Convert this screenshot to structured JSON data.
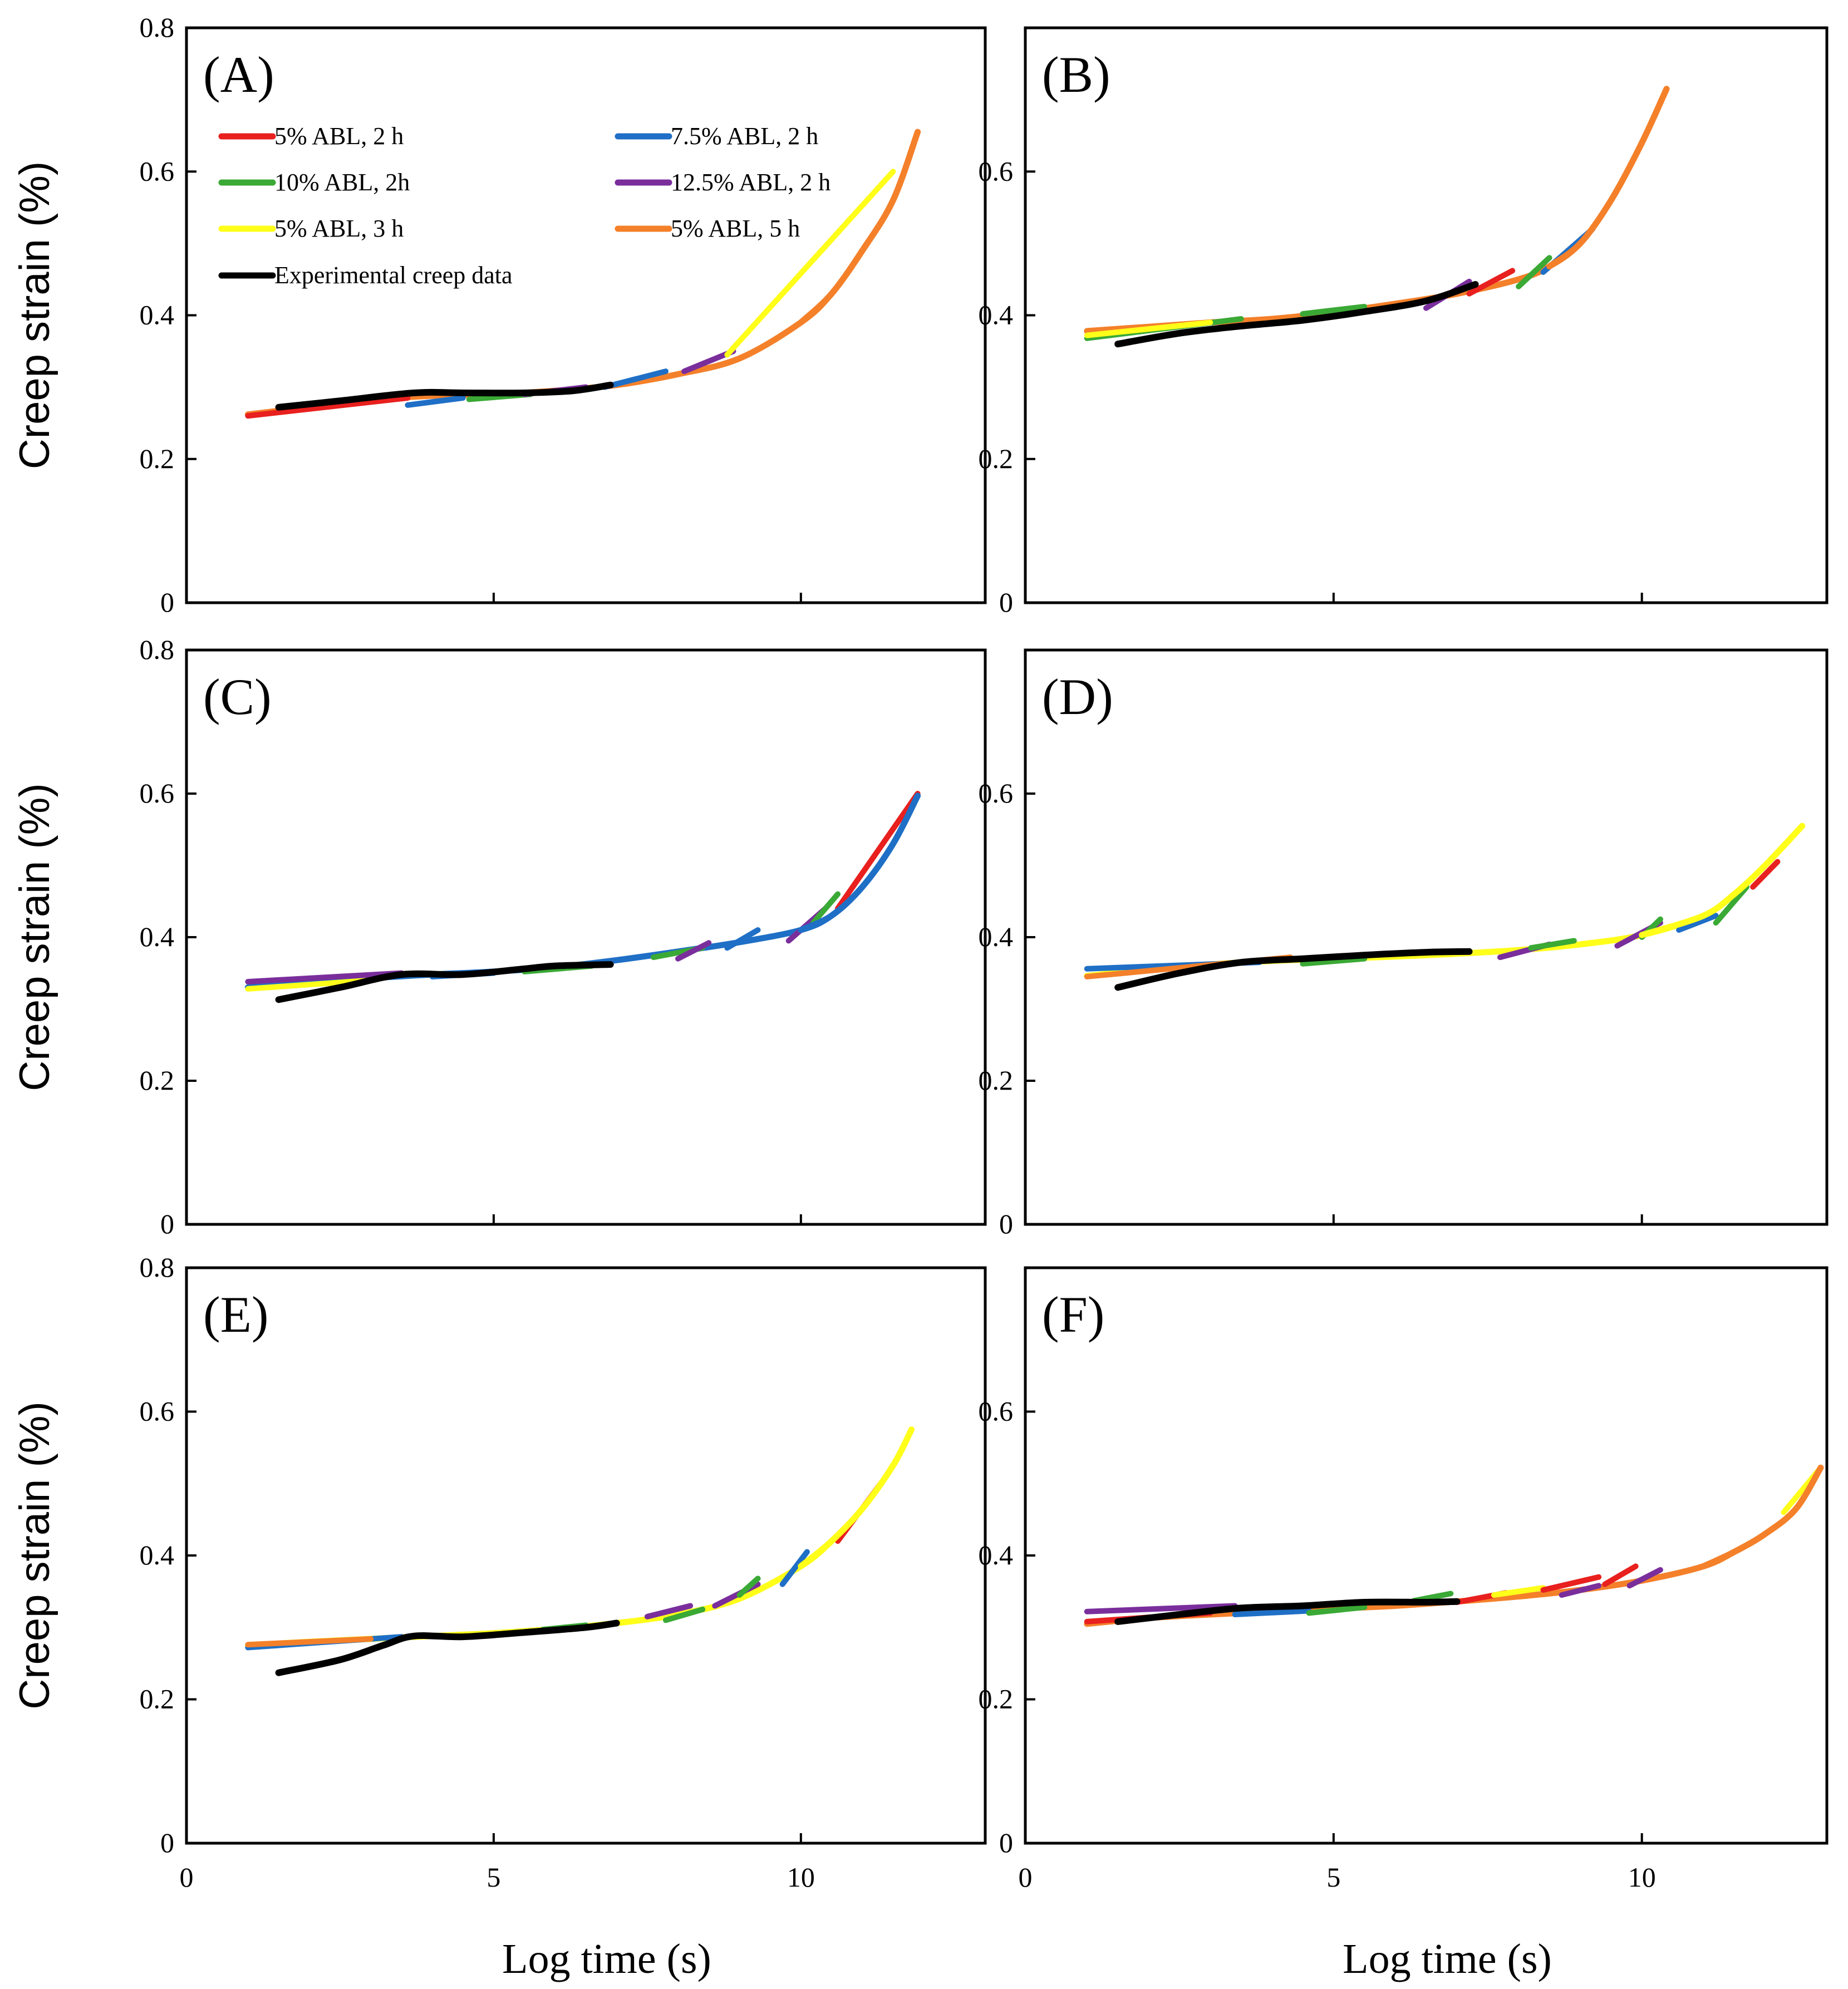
{
  "chart_data": {
    "type": "line",
    "layout": "3x2 grid of panels",
    "xlabel": "Log time (s)",
    "ylabel": "Creep strain (%)",
    "xlim": [
      0,
      13
    ],
    "ylim": [
      0,
      0.8
    ],
    "x_ticks": [
      "0",
      "5",
      "10"
    ],
    "y_ticks": [
      "0",
      "0.2",
      "0.4",
      "0.6",
      "0.8"
    ],
    "legend": {
      "placement": "top, inside panel A, two columns",
      "entries": [
        {
          "name": "5% ABL, 2 h",
          "color": "#e8201e"
        },
        {
          "name": "7.5% ABL, 2 h",
          "color": "#1f6fc6"
        },
        {
          "name": "10% ABL, 2h",
          "color": "#3aa935"
        },
        {
          "name": "12.5% ABL, 2 h",
          "color": "#7a2e9c"
        },
        {
          "name": "5% ABL, 3 h",
          "color": "#ffff1a"
        },
        {
          "name": "5% ABL, 5 h",
          "color": "#f4802a"
        },
        {
          "name": "Experimental creep data",
          "color": "#000000"
        }
      ]
    },
    "panels": [
      {
        "label": "(A)",
        "master_curve": {
          "x": [
            1,
            2,
            3,
            4,
            5,
            6,
            7,
            8,
            9,
            10,
            10.5,
            11,
            11.5,
            11.9
          ],
          "y": [
            0.262,
            0.272,
            0.282,
            0.288,
            0.29,
            0.295,
            0.303,
            0.318,
            0.34,
            0.39,
            0.43,
            0.49,
            0.56,
            0.655
          ],
          "final_series": "5% ABL, 5 h"
        },
        "segments": [
          {
            "series": "5% ABL, 2 h",
            "x": [
              1.0,
              3.6
            ],
            "y": [
              0.26,
              0.285
            ]
          },
          {
            "series": "7.5% ABL, 2 h",
            "x": [
              3.6,
              4.5
            ],
            "y": [
              0.275,
              0.285
            ]
          },
          {
            "series": "10% ABL, 2h",
            "x": [
              4.6,
              5.6
            ],
            "y": [
              0.283,
              0.29
            ]
          },
          {
            "series": "12.5% ABL, 2 h",
            "x": [
              5.5,
              6.5
            ],
            "y": [
              0.29,
              0.3
            ]
          },
          {
            "series": "7.5% ABL, 2 h",
            "x": [
              6.8,
              7.8
            ],
            "y": [
              0.3,
              0.322
            ]
          },
          {
            "series": "12.5% ABL, 2 h",
            "x": [
              8.1,
              8.9
            ],
            "y": [
              0.322,
              0.35
            ]
          },
          {
            "series": "5% ABL, 3 h",
            "x": [
              8.8,
              11.5
            ],
            "y": [
              0.345,
              0.6
            ]
          }
        ],
        "experimental": {
          "x": [
            1.5,
            2.5,
            3.7,
            4.5,
            5.5,
            6.3,
            6.9
          ],
          "y": [
            0.272,
            0.281,
            0.292,
            0.292,
            0.292,
            0.295,
            0.303
          ]
        }
      },
      {
        "label": "(B)",
        "master_curve": {
          "x": [
            1,
            2,
            3,
            4,
            5,
            6,
            7,
            8,
            8.5,
            9,
            9.5,
            10,
            10.4
          ],
          "y": [
            0.378,
            0.384,
            0.39,
            0.395,
            0.404,
            0.416,
            0.43,
            0.45,
            0.468,
            0.5,
            0.56,
            0.64,
            0.715
          ],
          "final_series": "5% ABL, 5 h"
        },
        "segments": [
          {
            "series": "10% ABL, 2h",
            "x": [
              1.0,
              3.5
            ],
            "y": [
              0.368,
              0.395
            ]
          },
          {
            "series": "5% ABL, 3 h",
            "x": [
              1.0,
              3.0
            ],
            "y": [
              0.372,
              0.39
            ]
          },
          {
            "series": "10% ABL, 2h",
            "x": [
              4.5,
              5.5
            ],
            "y": [
              0.402,
              0.412
            ]
          },
          {
            "series": "12.5% ABL, 2 h",
            "x": [
              6.5,
              7.2
            ],
            "y": [
              0.41,
              0.447
            ]
          },
          {
            "series": "5% ABL, 2 h",
            "x": [
              7.2,
              7.9
            ],
            "y": [
              0.43,
              0.462
            ]
          },
          {
            "series": "10% ABL, 2h",
            "x": [
              8.0,
              8.5
            ],
            "y": [
              0.44,
              0.48
            ]
          },
          {
            "series": "7.5% ABL, 2 h",
            "x": [
              8.4,
              9.2
            ],
            "y": [
              0.46,
              0.52
            ]
          }
        ],
        "experimental": {
          "x": [
            1.5,
            2.5,
            3.5,
            4.5,
            5.5,
            6.5,
            7.3
          ],
          "y": [
            0.36,
            0.375,
            0.385,
            0.393,
            0.405,
            0.42,
            0.443
          ]
        }
      },
      {
        "label": "(C)",
        "master_curve": {
          "x": [
            1,
            2,
            3,
            4,
            5,
            6,
            7,
            8,
            9,
            10,
            10.5,
            11,
            11.5,
            11.9
          ],
          "y": [
            0.33,
            0.338,
            0.343,
            0.348,
            0.352,
            0.358,
            0.368,
            0.38,
            0.393,
            0.41,
            0.43,
            0.47,
            0.53,
            0.597
          ],
          "final_series": "7.5% ABL, 2 h"
        },
        "segments": [
          {
            "series": "12.5% ABL, 2 h",
            "x": [
              1.0,
              3.5
            ],
            "y": [
              0.338,
              0.35
            ]
          },
          {
            "series": "5% ABL, 3 h",
            "x": [
              1.0,
              3.0
            ],
            "y": [
              0.328,
              0.34
            ]
          },
          {
            "series": "7.5% ABL, 2 h",
            "x": [
              4.0,
              5.0
            ],
            "y": [
              0.345,
              0.35
            ]
          },
          {
            "series": "10% ABL, 2h",
            "x": [
              5.5,
              6.6
            ],
            "y": [
              0.352,
              0.36
            ]
          },
          {
            "series": "10% ABL, 2h",
            "x": [
              7.6,
              8.4
            ],
            "y": [
              0.372,
              0.385
            ]
          },
          {
            "series": "12.5% ABL, 2 h",
            "x": [
              8.0,
              8.5
            ],
            "y": [
              0.37,
              0.392
            ]
          },
          {
            "series": "7.5% ABL, 2 h",
            "x": [
              8.8,
              9.3
            ],
            "y": [
              0.385,
              0.41
            ]
          },
          {
            "series": "12.5% ABL, 2 h",
            "x": [
              9.8,
              10.4
            ],
            "y": [
              0.395,
              0.44
            ]
          },
          {
            "series": "10% ABL, 2h",
            "x": [
              10.2,
              10.6
            ],
            "y": [
              0.42,
              0.46
            ]
          },
          {
            "series": "5% ABL, 2 h",
            "x": [
              10.6,
              11.9
            ],
            "y": [
              0.44,
              0.6
            ]
          }
        ],
        "experimental": {
          "x": [
            1.5,
            2.5,
            3.5,
            4.5,
            5.5,
            6.0,
            6.9
          ],
          "y": [
            0.313,
            0.33,
            0.348,
            0.348,
            0.356,
            0.36,
            0.362
          ]
        }
      },
      {
        "label": "(D)",
        "master_curve": {
          "x": [
            1,
            2,
            3,
            4,
            5,
            6,
            7,
            8,
            9,
            10,
            11,
            11.5,
            12,
            12.6
          ],
          "y": [
            0.346,
            0.355,
            0.362,
            0.367,
            0.37,
            0.373,
            0.377,
            0.382,
            0.39,
            0.403,
            0.43,
            0.46,
            0.5,
            0.555
          ],
          "final_series": "5% ABL, 3 h"
        },
        "segments": [
          {
            "series": "7.5% ABL, 2 h",
            "x": [
              1.0,
              3.8
            ],
            "y": [
              0.356,
              0.365
            ]
          },
          {
            "series": "5% ABL, 5 h",
            "x": [
              1.0,
              4.3
            ],
            "y": [
              0.345,
              0.372
            ]
          },
          {
            "series": "10% ABL, 2h",
            "x": [
              4.5,
              5.5
            ],
            "y": [
              0.363,
              0.37
            ]
          },
          {
            "series": "12.5% ABL, 2 h",
            "x": [
              7.7,
              8.5
            ],
            "y": [
              0.372,
              0.39
            ]
          },
          {
            "series": "10% ABL, 2h",
            "x": [
              8.2,
              8.9
            ],
            "y": [
              0.385,
              0.395
            ]
          },
          {
            "series": "12.5% ABL, 2 h",
            "x": [
              9.6,
              10.3
            ],
            "y": [
              0.388,
              0.42
            ]
          },
          {
            "series": "10% ABL, 2h",
            "x": [
              10.0,
              10.3
            ],
            "y": [
              0.4,
              0.425
            ]
          },
          {
            "series": "7.5% ABL, 2 h",
            "x": [
              10.6,
              11.2
            ],
            "y": [
              0.41,
              0.43
            ]
          },
          {
            "series": "10% ABL, 2h",
            "x": [
              11.2,
              11.7
            ],
            "y": [
              0.42,
              0.47
            ]
          },
          {
            "series": "5% ABL, 2 h",
            "x": [
              11.8,
              12.2
            ],
            "y": [
              0.47,
              0.505
            ]
          }
        ],
        "experimental": {
          "x": [
            1.5,
            2.5,
            3.5,
            4.5,
            5.5,
            6.5,
            7.2
          ],
          "y": [
            0.33,
            0.35,
            0.365,
            0.37,
            0.375,
            0.379,
            0.38
          ]
        }
      },
      {
        "label": "(E)",
        "master_curve": {
          "x": [
            1,
            2,
            3,
            4,
            5,
            6,
            7,
            8,
            9,
            10,
            10.5,
            11,
            11.5,
            11.8
          ],
          "y": [
            0.275,
            0.28,
            0.284,
            0.288,
            0.292,
            0.298,
            0.306,
            0.318,
            0.34,
            0.385,
            0.42,
            0.465,
            0.525,
            0.575
          ],
          "final_series": "5% ABL, 3 h"
        },
        "segments": [
          {
            "series": "7.5% ABL, 2 h",
            "x": [
              1.0,
              3.5
            ],
            "y": [
              0.272,
              0.287
            ]
          },
          {
            "series": "5% ABL, 5 h",
            "x": [
              1.0,
              3.0
            ],
            "y": [
              0.276,
              0.284
            ]
          },
          {
            "series": "10% ABL, 2h",
            "x": [
              5.8,
              6.5
            ],
            "y": [
              0.297,
              0.303
            ]
          },
          {
            "series": "12.5% ABL, 2 h",
            "x": [
              7.5,
              8.2
            ],
            "y": [
              0.315,
              0.33
            ]
          },
          {
            "series": "10% ABL, 2h",
            "x": [
              7.8,
              8.4
            ],
            "y": [
              0.31,
              0.325
            ]
          },
          {
            "series": "12.5% ABL, 2 h",
            "x": [
              8.6,
              9.3
            ],
            "y": [
              0.33,
              0.36
            ]
          },
          {
            "series": "10% ABL, 2h",
            "x": [
              9.0,
              9.3
            ],
            "y": [
              0.345,
              0.368
            ]
          },
          {
            "series": "7.5% ABL, 2 h",
            "x": [
              9.7,
              10.1
            ],
            "y": [
              0.36,
              0.405
            ]
          },
          {
            "series": "5% ABL, 2 h",
            "x": [
              10.6,
              11.3
            ],
            "y": [
              0.42,
              0.5
            ]
          }
        ],
        "experimental": {
          "x": [
            1.5,
            2.5,
            3.2,
            3.7,
            4.5,
            5.5,
            6.5,
            7.0
          ],
          "y": [
            0.237,
            0.255,
            0.275,
            0.288,
            0.287,
            0.293,
            0.3,
            0.306
          ]
        }
      },
      {
        "label": "(F)",
        "master_curve": {
          "x": [
            1,
            2,
            3,
            4,
            5,
            6,
            7,
            8,
            9,
            10,
            11,
            11.5,
            12,
            12.5,
            12.9
          ],
          "y": [
            0.305,
            0.313,
            0.318,
            0.322,
            0.326,
            0.33,
            0.336,
            0.343,
            0.352,
            0.365,
            0.385,
            0.405,
            0.43,
            0.465,
            0.522
          ],
          "final_series": "5% ABL, 5 h"
        },
        "segments": [
          {
            "series": "12.5% ABL, 2 h",
            "x": [
              1.0,
              3.4
            ],
            "y": [
              0.322,
              0.33
            ]
          },
          {
            "series": "5% ABL, 2 h",
            "x": [
              1.0,
              3.0
            ],
            "y": [
              0.308,
              0.32
            ]
          },
          {
            "series": "7.5% ABL, 2 h",
            "x": [
              3.4,
              4.6
            ],
            "y": [
              0.318,
              0.323
            ]
          },
          {
            "series": "10% ABL, 2h",
            "x": [
              4.6,
              5.5
            ],
            "y": [
              0.32,
              0.328
            ]
          },
          {
            "series": "10% ABL, 2h",
            "x": [
              6.3,
              6.9
            ],
            "y": [
              0.337,
              0.347
            ]
          },
          {
            "series": "5% ABL, 2 h",
            "x": [
              7.0,
              7.8
            ],
            "y": [
              0.335,
              0.348
            ]
          },
          {
            "series": "5% ABL, 3 h",
            "x": [
              7.6,
              8.4
            ],
            "y": [
              0.345,
              0.355
            ]
          },
          {
            "series": "5% ABL, 2 h",
            "x": [
              8.4,
              9.3
            ],
            "y": [
              0.352,
              0.37
            ]
          },
          {
            "series": "12.5% ABL, 2 h",
            "x": [
              8.7,
              9.3
            ],
            "y": [
              0.345,
              0.358
            ]
          },
          {
            "series": "5% ABL, 2 h",
            "x": [
              9.4,
              9.9
            ],
            "y": [
              0.36,
              0.385
            ]
          },
          {
            "series": "12.5% ABL, 2 h",
            "x": [
              9.8,
              10.3
            ],
            "y": [
              0.358,
              0.38
            ]
          },
          {
            "series": "5% ABL, 3 h",
            "x": [
              12.3,
              12.9
            ],
            "y": [
              0.46,
              0.522
            ]
          }
        ],
        "experimental": {
          "x": [
            1.5,
            2.5,
            3.5,
            4.5,
            5.5,
            6.5,
            7.0
          ],
          "y": [
            0.308,
            0.318,
            0.327,
            0.33,
            0.335,
            0.335,
            0.336
          ]
        }
      }
    ]
  }
}
